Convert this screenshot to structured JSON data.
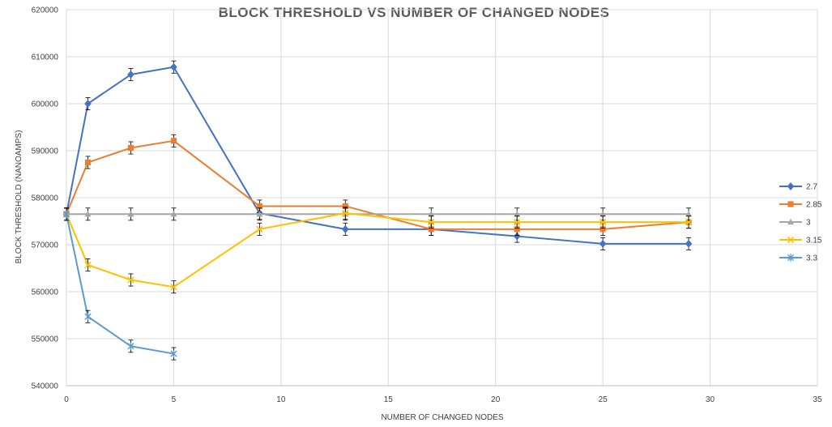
{
  "chart_data": {
    "type": "line",
    "title": "BLOCK THRESHOLD VS NUMBER OF CHANGED NODES",
    "xlabel": "NUMBER OF CHANGED NODES",
    "ylabel": "BLOCK THRESHOLD (NANOAMPS)",
    "xlim": [
      0,
      35
    ],
    "ylim": [
      540000,
      620000
    ],
    "x_ticks": [
      0,
      5,
      10,
      15,
      20,
      25,
      30,
      35
    ],
    "y_ticks": [
      540000,
      550000,
      560000,
      570000,
      580000,
      590000,
      600000,
      610000,
      620000
    ],
    "x_tick_labels": [
      "0",
      "5",
      "10",
      "15",
      "20",
      "25",
      "30",
      "35"
    ],
    "y_tick_labels": [
      "540000",
      "550000",
      "560000",
      "570000",
      "580000",
      "590000",
      "600000",
      "610000",
      "620000"
    ],
    "grid": true,
    "legend_position": "right",
    "error_bar": 1300,
    "series": [
      {
        "name": "2.7",
        "color": "#4472C4",
        "marker": "diamond",
        "x": [
          0,
          1,
          3,
          5,
          9,
          13,
          17,
          21,
          25,
          29
        ],
        "values": [
          576500,
          600000,
          606200,
          607800,
          576700,
          573300,
          573300,
          571800,
          570200,
          570200
        ]
      },
      {
        "name": "2.85",
        "color": "#ED7D31",
        "marker": "square",
        "x": [
          0,
          1,
          3,
          5,
          9,
          13,
          17,
          21,
          25,
          29
        ],
        "values": [
          576500,
          587500,
          590600,
          592100,
          578200,
          578200,
          573300,
          573300,
          573300,
          574800
        ]
      },
      {
        "name": "3",
        "color": "#A5A5A5",
        "marker": "triangle",
        "x": [
          0,
          1,
          3,
          5,
          9,
          13,
          17,
          21,
          25,
          29
        ],
        "values": [
          576500,
          576500,
          576500,
          576500,
          576500,
          576500,
          576500,
          576500,
          576500,
          576500
        ]
      },
      {
        "name": "3.15",
        "color": "#FFC000",
        "marker": "x",
        "x": [
          0,
          1,
          3,
          5,
          9,
          13,
          17,
          21,
          25,
          29
        ],
        "values": [
          576500,
          565700,
          562500,
          561000,
          573300,
          576700,
          574800,
          574800,
          574800,
          574800
        ]
      },
      {
        "name": "3.3",
        "color": "#5B9BD5",
        "marker": "star",
        "x": [
          0,
          1,
          3,
          5
        ],
        "values": [
          576500,
          554700,
          548400,
          546800
        ]
      }
    ]
  }
}
